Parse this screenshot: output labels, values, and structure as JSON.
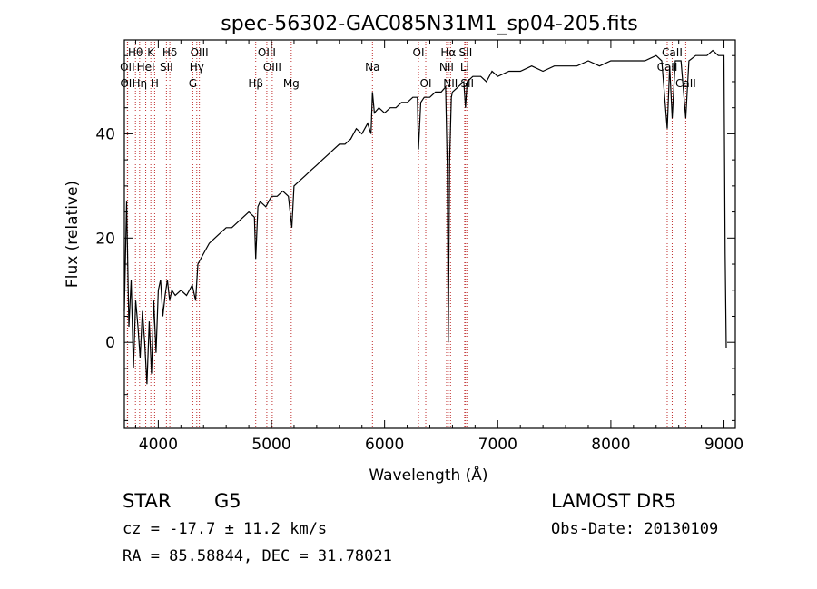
{
  "chart_data": {
    "type": "line",
    "title": "spec-56302-GAC085N31M1_sp04-205.fits",
    "xlabel": "Wavelength (Å)",
    "ylabel": "Flux (relative)",
    "xlim": [
      3700,
      9100
    ],
    "ylim": [
      -16.5,
      58
    ],
    "xticks": [
      4000,
      5000,
      6000,
      7000,
      8000,
      9000
    ],
    "yticks": [
      0,
      20,
      40
    ],
    "grid": false,
    "series": [
      {
        "color": "#000000",
        "x": [
          3700,
          3720,
          3740,
          3760,
          3780,
          3800,
          3820,
          3840,
          3860,
          3880,
          3900,
          3920,
          3940,
          3960,
          3980,
          4000,
          4020,
          4040,
          4060,
          4080,
          4100,
          4120,
          4150,
          4200,
          4250,
          4300,
          4330,
          4350,
          4400,
          4450,
          4500,
          4550,
          4600,
          4650,
          4700,
          4750,
          4800,
          4850,
          4861,
          4880,
          4900,
          4950,
          5000,
          5050,
          5100,
          5150,
          5180,
          5200,
          5250,
          5300,
          5350,
          5400,
          5450,
          5500,
          5550,
          5600,
          5650,
          5700,
          5750,
          5800,
          5850,
          5880,
          5893,
          5910,
          5950,
          6000,
          6050,
          6100,
          6150,
          6200,
          6250,
          6290,
          6300,
          6320,
          6350,
          6400,
          6450,
          6500,
          6540,
          6555,
          6563,
          6575,
          6590,
          6600,
          6650,
          6700,
          6715,
          6730,
          6780,
          6850,
          6900,
          6950,
          7000,
          7100,
          7200,
          7300,
          7400,
          7500,
          7600,
          7700,
          7800,
          7900,
          8000,
          8100,
          8200,
          8300,
          8400,
          8450,
          8498,
          8520,
          8542,
          8570,
          8620,
          8662,
          8690,
          8750,
          8800,
          8850,
          8900,
          8950,
          9000,
          9010,
          9020
        ],
        "y": [
          6,
          27,
          3,
          12,
          -5,
          8,
          3,
          -3,
          6,
          0,
          -8,
          4,
          -6,
          8,
          -2,
          10,
          12,
          5,
          9,
          12,
          8,
          10,
          9,
          10,
          9,
          11,
          8,
          15,
          17,
          19,
          20,
          21,
          22,
          22,
          23,
          24,
          25,
          24,
          16,
          26,
          27,
          26,
          28,
          28,
          29,
          28,
          22,
          30,
          31,
          32,
          33,
          34,
          35,
          36,
          37,
          38,
          38,
          39,
          41,
          40,
          42,
          40,
          48,
          44,
          45,
          44,
          45,
          45,
          46,
          46,
          47,
          47,
          37,
          46,
          47,
          47,
          48,
          48,
          49,
          33,
          0,
          35,
          47,
          48,
          49,
          50,
          45,
          50,
          51,
          51,
          50,
          52,
          51,
          52,
          52,
          53,
          52,
          53,
          53,
          53,
          54,
          53,
          54,
          54,
          54,
          54,
          55,
          54,
          41,
          53,
          43,
          54,
          54,
          43,
          54,
          55,
          55,
          55,
          56,
          55,
          55,
          17,
          -1
        ]
      }
    ],
    "lines": [
      {
        "label": "Hθ",
        "x": 3798,
        "row": 1
      },
      {
        "label": "OII",
        "x": 3727,
        "row": 2
      },
      {
        "label": "OII",
        "x": 3729,
        "row": 3
      },
      {
        "label": "K",
        "x": 3934,
        "row": 1
      },
      {
        "label": "HeI",
        "x": 3889,
        "row": 2
      },
      {
        "label": "Hη",
        "x": 3835,
        "row": 3
      },
      {
        "label": "Hδ",
        "x": 4102,
        "row": 1
      },
      {
        "label": "SII",
        "x": 4072,
        "row": 2
      },
      {
        "label": "H",
        "x": 3968,
        "row": 3
      },
      {
        "label": "OIII",
        "x": 4363,
        "row": 1
      },
      {
        "label": "Hγ",
        "x": 4340,
        "row": 2
      },
      {
        "label": "G",
        "x": 4305,
        "row": 3
      },
      {
        "label": "OIII",
        "x": 4959,
        "row": 1
      },
      {
        "label": "OIII",
        "x": 5007,
        "row": 2
      },
      {
        "label": "Hβ",
        "x": 4861,
        "row": 3
      },
      {
        "label": "Mg",
        "x": 5175,
        "row": 3
      },
      {
        "label": "Na",
        "x": 5893,
        "row": 2
      },
      {
        "label": "OI",
        "x": 6300,
        "row": 1
      },
      {
        "label": "OI",
        "x": 6364,
        "row": 3
      },
      {
        "label": "Hα",
        "x": 6563,
        "row": 1
      },
      {
        "label": "NII",
        "x": 6548,
        "row": 2
      },
      {
        "label": "NII",
        "x": 6583,
        "row": 3
      },
      {
        "label": "SII",
        "x": 6716,
        "row": 1
      },
      {
        "label": "Li",
        "x": 6708,
        "row": 2
      },
      {
        "label": "SII",
        "x": 6731,
        "row": 3
      },
      {
        "label": "CaII",
        "x": 8542,
        "row": 1
      },
      {
        "label": "CaII",
        "x": 8498,
        "row": 2
      },
      {
        "label": "CaII",
        "x": 8662,
        "row": 3
      }
    ]
  },
  "info": {
    "class": "STAR",
    "subclass": "G5",
    "survey": "LAMOST DR5",
    "cz": "cz = -17.7 ± 11.2 km/s",
    "obs_date": "Obs-Date: 20130109",
    "coords": "RA =  85.58844, DEC =  31.78021"
  }
}
